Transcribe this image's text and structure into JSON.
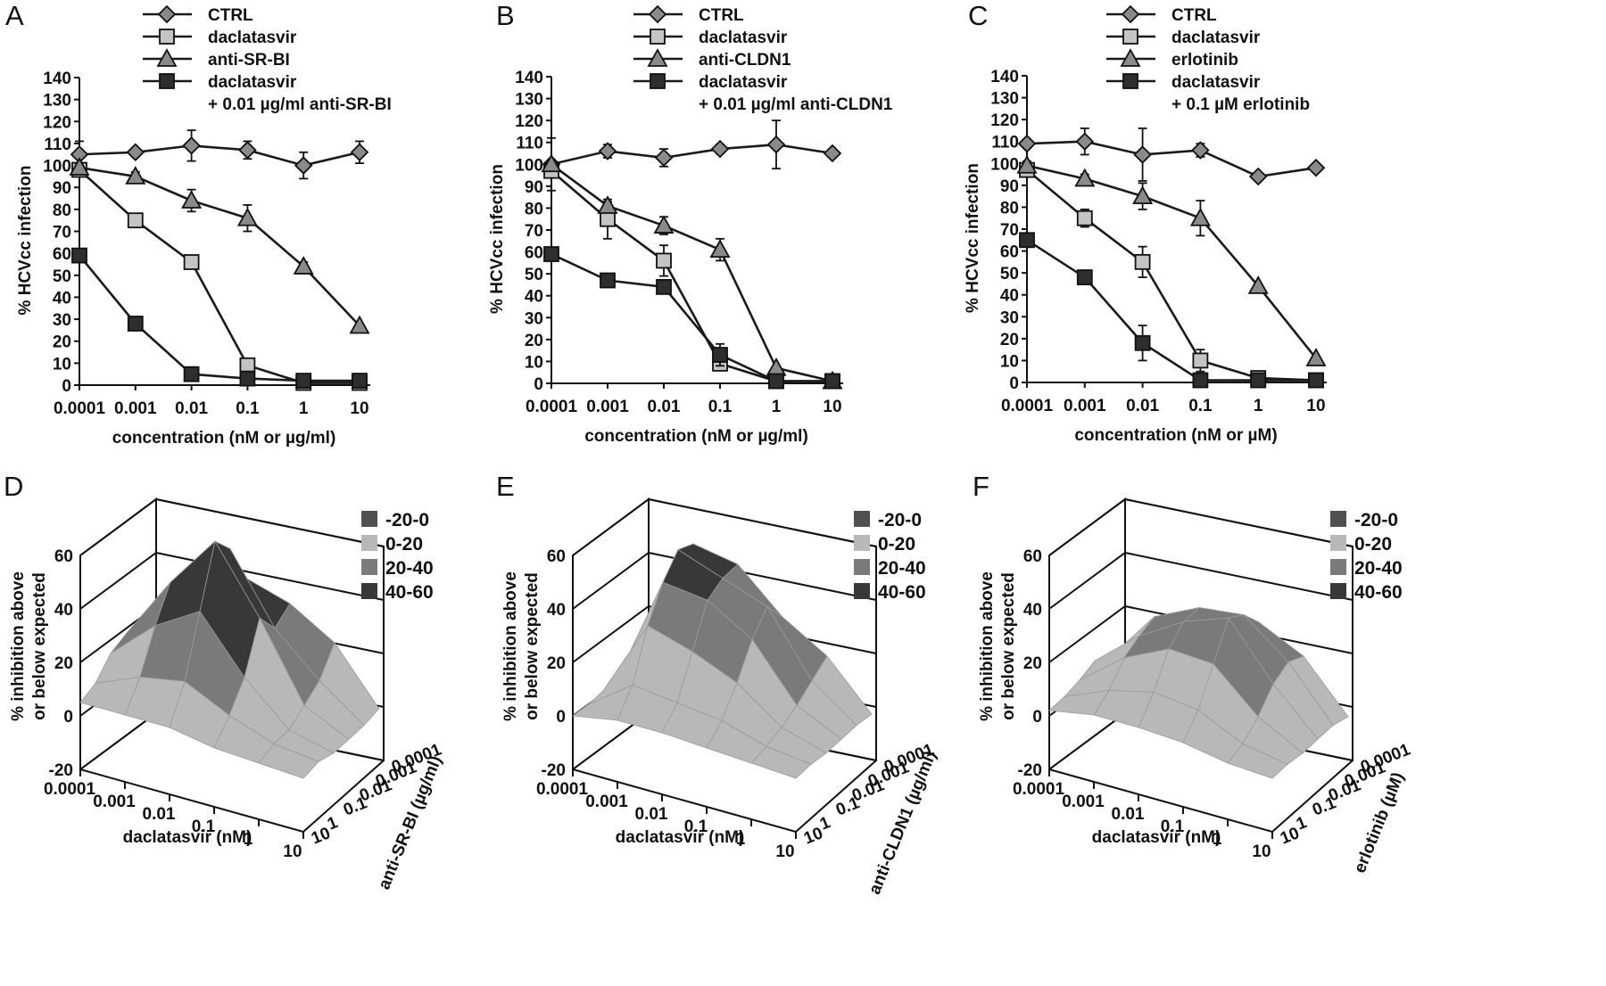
{
  "chart_data": [
    {
      "panel": "A",
      "type": "line",
      "log_x": true,
      "x": [
        0.0001,
        0.001,
        0.01,
        0.1,
        1,
        10
      ],
      "x_ticks": [
        "0.0001",
        "0.001",
        "0.01",
        "0.1",
        "1",
        "10"
      ],
      "y_ticks": [
        "0",
        "10",
        "20",
        "30",
        "40",
        "50",
        "60",
        "70",
        "80",
        "90",
        "100",
        "110",
        "120",
        "130",
        "140"
      ],
      "ylim": [
        0,
        140
      ],
      "xlabel": "concentration (nM or µg/ml)",
      "ylabel": "% HCVcc infection",
      "legend_position": "top",
      "series": [
        {
          "name": "CTRL",
          "marker": "diamond",
          "color": "#8a8a8a",
          "values": [
            105,
            106,
            109,
            107,
            100,
            106
          ],
          "err": [
            6,
            2,
            7,
            4,
            6,
            5
          ]
        },
        {
          "name": "daclatasvir",
          "marker": "square",
          "color": "#c4c4c4",
          "values": [
            98,
            75,
            56,
            9,
            1,
            1
          ],
          "err": [
            2,
            2,
            2,
            3,
            1,
            1
          ]
        },
        {
          "name": "anti-SR-BI",
          "marker": "triangle",
          "color": "#8a8a8a",
          "values": [
            99,
            95,
            84,
            76,
            54,
            27
          ],
          "err": [
            2,
            2,
            5,
            6,
            2,
            1
          ]
        },
        {
          "name": "daclatasvir\n+ 0.01 µg/ml anti-SR-BI",
          "marker": "square",
          "color": "#2e2e2e",
          "values": [
            59,
            28,
            5,
            3,
            2,
            2
          ],
          "err": [
            2,
            1,
            1,
            1,
            1,
            1
          ]
        }
      ]
    },
    {
      "panel": "B",
      "type": "line",
      "log_x": true,
      "x": [
        0.0001,
        0.001,
        0.01,
        0.1,
        1,
        10
      ],
      "x_ticks": [
        "0.0001",
        "0.001",
        "0.01",
        "0.1",
        "1",
        "10"
      ],
      "y_ticks": [
        "0",
        "10",
        "20",
        "30",
        "40",
        "50",
        "60",
        "70",
        "80",
        "90",
        "100",
        "110",
        "120",
        "130",
        "140"
      ],
      "ylim": [
        0,
        140
      ],
      "xlabel": "concentration (nM or µg/ml)",
      "ylabel": "% HCVcc infection",
      "legend_position": "top",
      "series": [
        {
          "name": "CTRL",
          "marker": "diamond",
          "color": "#8a8a8a",
          "values": [
            100,
            106,
            103,
            107,
            109,
            105
          ],
          "err": [
            12,
            3,
            4,
            2,
            11,
            1
          ]
        },
        {
          "name": "daclatasvir",
          "marker": "square",
          "color": "#c4c4c4",
          "values": [
            97,
            75,
            56,
            9,
            1,
            1
          ],
          "err": [
            3,
            9,
            7,
            3,
            1,
            1
          ]
        },
        {
          "name": "anti-CLDN1",
          "marker": "triangle",
          "color": "#8a8a8a",
          "values": [
            100,
            81,
            72,
            61,
            7,
            1
          ],
          "err": [
            2,
            2,
            4,
            5,
            1,
            1
          ]
        },
        {
          "name": "daclatasvir\n+ 0.01 µg/ml anti-CLDN1",
          "marker": "square",
          "color": "#2e2e2e",
          "values": [
            59,
            47,
            44,
            13,
            1,
            1
          ],
          "err": [
            2,
            1,
            2,
            5,
            1,
            1
          ]
        }
      ]
    },
    {
      "panel": "C",
      "type": "line",
      "log_x": true,
      "x": [
        0.0001,
        0.001,
        0.01,
        0.1,
        1,
        10
      ],
      "x_ticks": [
        "0.0001",
        "0.001",
        "0.01",
        "0.1",
        "1",
        "10"
      ],
      "y_ticks": [
        "0",
        "10",
        "20",
        "30",
        "40",
        "50",
        "60",
        "70",
        "80",
        "90",
        "100",
        "110",
        "120",
        "130",
        "140"
      ],
      "ylim": [
        0,
        140
      ],
      "xlabel": "concentration (nM or µM)",
      "ylabel": "% HCVcc infection",
      "legend_position": "top",
      "series": [
        {
          "name": "CTRL",
          "marker": "diamond",
          "color": "#8a8a8a",
          "values": [
            109,
            110,
            104,
            106,
            94,
            98
          ],
          "err": [
            2,
            6,
            12,
            3,
            1,
            1
          ]
        },
        {
          "name": "daclatasvir",
          "marker": "square",
          "color": "#c4c4c4",
          "values": [
            97,
            75,
            55,
            10,
            2,
            1
          ],
          "err": [
            3,
            4,
            7,
            5,
            1,
            1
          ]
        },
        {
          "name": "erlotinib",
          "marker": "triangle",
          "color": "#8a8a8a",
          "values": [
            99,
            93,
            85,
            75,
            44,
            11
          ],
          "err": [
            2,
            2,
            6,
            8,
            1,
            1
          ]
        },
        {
          "name": "daclatasvir\n+ 0.1 µM erlotinib",
          "marker": "square",
          "color": "#2e2e2e",
          "values": [
            65,
            48,
            18,
            1,
            1,
            1
          ],
          "err": [
            2,
            1,
            8,
            1,
            1,
            1
          ]
        }
      ]
    },
    {
      "panel": "D",
      "type": "surface3d",
      "x_ticks": [
        "0.0001",
        "0.001",
        "0.01",
        "0.1",
        "1",
        "10"
      ],
      "depth_ticks": [
        "0.0001",
        "0.001",
        "0.01",
        "0.1",
        "1",
        "10"
      ],
      "z_ticks": [
        "-20",
        "0",
        "20",
        "40",
        "60"
      ],
      "zlim": [
        -20,
        60
      ],
      "xlabel": "daclatasvir (nM)",
      "ylabel": "anti-SR-BI (µg/ml)",
      "zlabel": "% inhibition above\nor below expected",
      "legend": [
        {
          "label": "-20-0",
          "color": "#505050"
        },
        {
          "label": "0-20",
          "color": "#b8b8b8"
        },
        {
          "label": "20-40",
          "color": "#7a7a7a"
        },
        {
          "label": "40-60",
          "color": "#383838"
        }
      ],
      "z": [
        [
          15,
          20,
          40,
          35,
          25,
          5
        ],
        [
          20,
          35,
          55,
          30,
          15,
          3
        ],
        [
          18,
          42,
          62,
          38,
          10,
          2
        ],
        [
          15,
          30,
          40,
          20,
          5,
          1
        ],
        [
          8,
          15,
          18,
          10,
          4,
          2
        ],
        [
          5,
          5,
          5,
          2,
          1,
          0
        ]
      ]
    },
    {
      "panel": "E",
      "type": "surface3d",
      "x_ticks": [
        "0.0001",
        "0.001",
        "0.01",
        "0.1",
        "1",
        "10"
      ],
      "depth_ticks": [
        "0.0001",
        "0.001",
        "0.01",
        "0.1",
        "1",
        "10"
      ],
      "z_ticks": [
        "-20",
        "0",
        "20",
        "40",
        "60"
      ],
      "zlim": [
        -20,
        60
      ],
      "xlabel": "daclatasvir (nM)",
      "ylabel": "anti-CLDN1 (µg/ml)",
      "zlabel": "% inhibition above\nor below expected",
      "legend": [
        {
          "label": "-20-0",
          "color": "#505050"
        },
        {
          "label": "0-20",
          "color": "#b8b8b8"
        },
        {
          "label": "20-40",
          "color": "#7a7a7a"
        },
        {
          "label": "40-60",
          "color": "#383838"
        }
      ],
      "z": [
        [
          2,
          48,
          45,
          30,
          20,
          3
        ],
        [
          3,
          50,
          44,
          38,
          15,
          3
        ],
        [
          2,
          42,
          40,
          30,
          10,
          2
        ],
        [
          1,
          30,
          25,
          18,
          6,
          1
        ],
        [
          0,
          12,
          10,
          8,
          3,
          1
        ],
        [
          0,
          3,
          3,
          2,
          1,
          0
        ]
      ]
    },
    {
      "panel": "F",
      "type": "surface3d",
      "x_ticks": [
        "0.0001",
        "0.001",
        "0.01",
        "0.1",
        "1",
        "10"
      ],
      "depth_ticks": [
        "0.0001",
        "0.001",
        "0.01",
        "0.1",
        "1",
        "10"
      ],
      "z_ticks": [
        "-20",
        "0",
        "20",
        "40",
        "60"
      ],
      "zlim": [
        -20,
        60
      ],
      "xlabel": "daclatasvir (nM)",
      "ylabel": "erlotinib (µM)",
      "zlabel": "% inhibition above\nor below expected",
      "legend": [
        {
          "label": "-20-0",
          "color": "#505050"
        },
        {
          "label": "0-20",
          "color": "#b8b8b8"
        },
        {
          "label": "20-40",
          "color": "#7a7a7a"
        },
        {
          "label": "40-60",
          "color": "#383838"
        }
      ],
      "z": [
        [
          3,
          18,
          28,
          28,
          20,
          2
        ],
        [
          5,
          25,
          33,
          35,
          22,
          3
        ],
        [
          8,
          22,
          32,
          38,
          18,
          2
        ],
        [
          5,
          18,
          26,
          25,
          10,
          1
        ],
        [
          3,
          10,
          14,
          12,
          4,
          1
        ],
        [
          2,
          5,
          5,
          4,
          1,
          0
        ]
      ]
    }
  ]
}
